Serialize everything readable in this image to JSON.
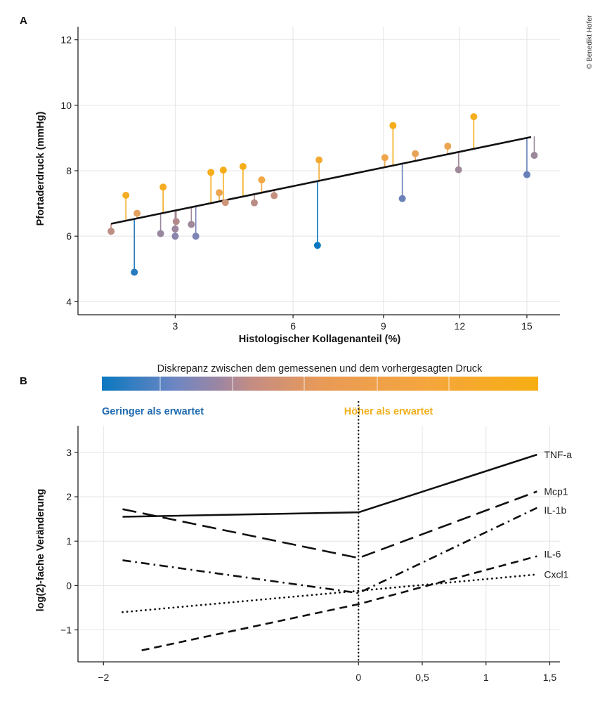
{
  "credit": "© Benedikt Hofer",
  "panel_a": {
    "letter": "A"
  },
  "panel_b": {
    "letter": "B",
    "colorbar_title": "Diskrepanz zwischen dem gemessenen und dem vorhergesagten Druck",
    "lower_label": "Geringer als erwartet",
    "higher_label": "Höher als erwartet"
  },
  "colors": {
    "low": "#0a78c0",
    "mid1": "#7f84b6",
    "mid2": "#b68a88",
    "mid3": "#d59a76",
    "high1": "#f0a64a",
    "high": "#f6ad1b",
    "lower_text": "#1f6bb0",
    "higher_text": "#f0b01e",
    "grid": "#e4e4e4",
    "line": "#111111"
  },
  "chart_data": [
    {
      "type": "scatter",
      "xlabel": "Histologischer Kollagenanteil (%)",
      "ylabel": "Pfortaderdruck (mmHg)",
      "x_scale": "sqrt",
      "xlim": [
        1.3,
        16.6
      ],
      "ylim": [
        3.6,
        12.4
      ],
      "xticks": [
        3,
        6,
        9,
        12,
        15
      ],
      "xtick_labels": [
        "3",
        "6",
        "9",
        "12",
        "15"
      ],
      "yticks": [
        4,
        6,
        8,
        10,
        12
      ],
      "ytick_labels": [
        "4",
        "6",
        "8",
        "10",
        "12"
      ],
      "grid": true,
      "fit_line": {
        "x": [
          1.8,
          15.2
        ],
        "y": [
          6.38,
          9.03
        ]
      },
      "points": [
        {
          "x": 1.8,
          "y": 6.15
        },
        {
          "x": 2.05,
          "y": 7.25
        },
        {
          "x": 2.2,
          "y": 4.9
        },
        {
          "x": 2.25,
          "y": 6.7
        },
        {
          "x": 2.7,
          "y": 6.08
        },
        {
          "x": 2.75,
          "y": 7.5
        },
        {
          "x": 3.0,
          "y": 6.0
        },
        {
          "x": 3.0,
          "y": 6.22
        },
        {
          "x": 3.02,
          "y": 6.45
        },
        {
          "x": 3.35,
          "y": 6.36
        },
        {
          "x": 3.45,
          "y": 6.0
        },
        {
          "x": 3.8,
          "y": 7.95
        },
        {
          "x": 4.0,
          "y": 7.33
        },
        {
          "x": 4.1,
          "y": 8.02
        },
        {
          "x": 4.15,
          "y": 7.03
        },
        {
          "x": 4.6,
          "y": 8.13
        },
        {
          "x": 4.9,
          "y": 7.02
        },
        {
          "x": 5.1,
          "y": 7.72
        },
        {
          "x": 5.45,
          "y": 7.24
        },
        {
          "x": 6.75,
          "y": 5.72
        },
        {
          "x": 6.8,
          "y": 8.33
        },
        {
          "x": 9.05,
          "y": 8.4
        },
        {
          "x": 9.35,
          "y": 9.38
        },
        {
          "x": 9.7,
          "y": 7.15
        },
        {
          "x": 10.2,
          "y": 8.52
        },
        {
          "x": 11.5,
          "y": 8.75
        },
        {
          "x": 11.95,
          "y": 8.03
        },
        {
          "x": 12.6,
          "y": 9.65
        },
        {
          "x": 15.0,
          "y": 7.88
        },
        {
          "x": 15.35,
          "y": 8.47
        }
      ]
    },
    {
      "type": "line",
      "xlabel": "",
      "ylabel": "log(2)-fache Veränderung",
      "xlim": [
        -2.2,
        1.58
      ],
      "ylim": [
        -1.72,
        3.6
      ],
      "xticks": [
        -2,
        0,
        0.5,
        1,
        1.5
      ],
      "xtick_labels": [
        "−2",
        "0",
        "0,5",
        "1",
        "1,5"
      ],
      "yticks": [
        -1,
        0,
        1,
        2,
        3
      ],
      "ytick_labels": [
        "−1",
        "0",
        "1",
        "2",
        "3"
      ],
      "grid": true,
      "reference_line_x": 0,
      "series": [
        {
          "name": "TNF-a",
          "style": "solid",
          "x": [
            -1.85,
            0,
            1.4
          ],
          "y": [
            1.55,
            1.65,
            2.95
          ]
        },
        {
          "name": "Mcp1",
          "style": "longdash",
          "x": [
            -1.85,
            0,
            1.4
          ],
          "y": [
            1.72,
            0.62,
            2.12
          ]
        },
        {
          "name": "IL-1b",
          "style": "dashdot",
          "x": [
            -1.85,
            0,
            1.4
          ],
          "y": [
            0.57,
            -0.17,
            1.75
          ]
        },
        {
          "name": "IL-6",
          "style": "dash",
          "x": [
            -1.7,
            0,
            1.4
          ],
          "y": [
            -1.46,
            -0.42,
            0.66
          ]
        },
        {
          "name": "Cxcl1",
          "style": "dotted",
          "x": [
            -1.85,
            0,
            1.4
          ],
          "y": [
            -0.6,
            -0.12,
            0.25
          ]
        }
      ]
    }
  ]
}
